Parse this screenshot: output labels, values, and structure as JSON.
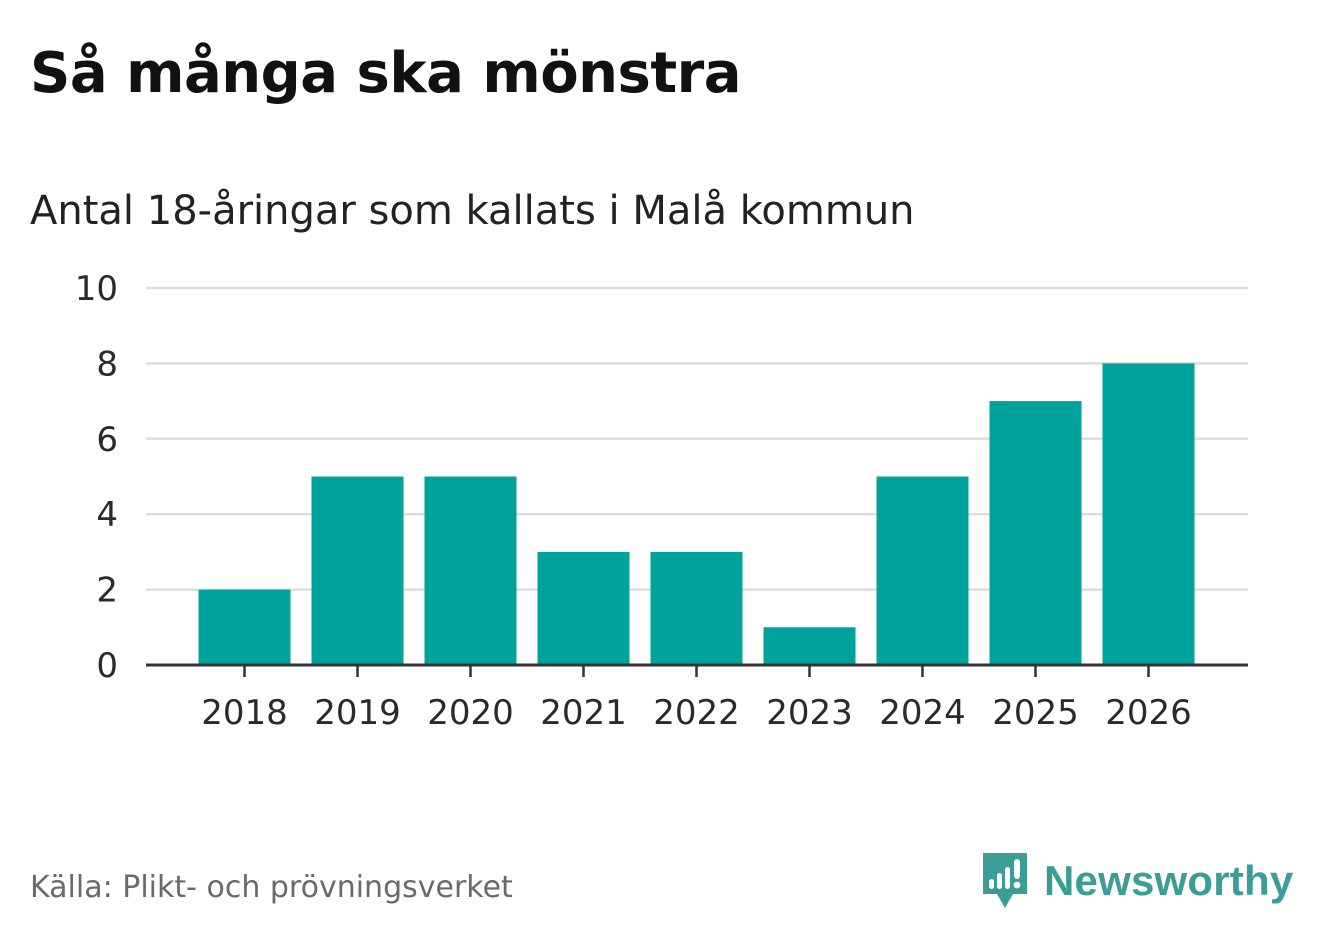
{
  "title": "Så många ska mönstra",
  "subtitle": "Antal 18-åringar som kallats i Malå kommun",
  "source": "Källa: Plikt- och prövningsverket",
  "brand": {
    "name": "Newsworthy",
    "icon": "newsworthy-logo-icon",
    "color": "#3a9e96"
  },
  "colors": {
    "bar": "#00a39b",
    "grid": "#dddddd",
    "axis": "#333333"
  },
  "chart_data": {
    "type": "bar",
    "title": "Så många ska mönstra",
    "subtitle": "Antal 18-åringar som kallats i Malå kommun",
    "categories": [
      "2018",
      "2019",
      "2020",
      "2021",
      "2022",
      "2023",
      "2024",
      "2025",
      "2026"
    ],
    "values": [
      2,
      5,
      5,
      3,
      3,
      1,
      5,
      7,
      8
    ],
    "xlabel": "",
    "ylabel": "",
    "ylim": [
      0,
      10
    ],
    "yticks": [
      "0",
      "2",
      "4",
      "6",
      "8",
      "10"
    ],
    "grid": true,
    "legend": "none"
  }
}
